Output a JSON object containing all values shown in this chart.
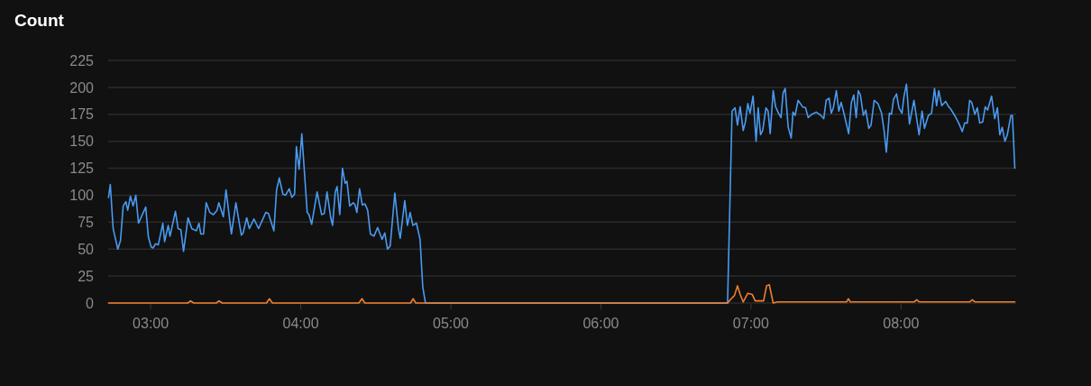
{
  "chart_data": {
    "type": "line",
    "title": "Count",
    "xlim": [
      2.72,
      8.77
    ],
    "xticks": [
      {
        "value": 3,
        "label": "03:00"
      },
      {
        "value": 4,
        "label": "04:00"
      },
      {
        "value": 5,
        "label": "05:00"
      },
      {
        "value": 6,
        "label": "06:00"
      },
      {
        "value": 7,
        "label": "07:00"
      },
      {
        "value": 8,
        "label": "08:00"
      }
    ],
    "ylim": [
      0,
      225
    ],
    "yticks": [
      0,
      25,
      50,
      75,
      100,
      125,
      150,
      175,
      200,
      225
    ],
    "grid": "y",
    "marker": "none",
    "line_style": "solid",
    "series": [
      {
        "color": "#4a9af0",
        "x": [
          2.722,
          2.734,
          2.753,
          2.784,
          2.802,
          2.82,
          2.838,
          2.85,
          2.868,
          2.886,
          2.904,
          2.922,
          2.97,
          2.988,
          3.006,
          3.018,
          3.036,
          3.054,
          3.084,
          3.096,
          3.12,
          3.132,
          3.168,
          3.186,
          3.204,
          3.222,
          3.252,
          3.277,
          3.307,
          3.325,
          3.337,
          3.355,
          3.373,
          3.397,
          3.421,
          3.445,
          3.457,
          3.487,
          3.505,
          3.541,
          3.571,
          3.607,
          3.619,
          3.643,
          3.661,
          3.691,
          3.722,
          3.77,
          3.788,
          3.824,
          3.842,
          3.86,
          3.884,
          3.902,
          3.926,
          3.944,
          3.962,
          3.974,
          3.992,
          4.01,
          4.046,
          4.058,
          4.076,
          4.112,
          4.142,
          4.16,
          4.178,
          4.203,
          4.215,
          4.233,
          4.245,
          4.263,
          4.281,
          4.299,
          4.311,
          4.329,
          4.353,
          4.365,
          4.377,
          4.395,
          4.413,
          4.431,
          4.449,
          4.467,
          4.491,
          4.515,
          4.545,
          4.563,
          4.581,
          4.599,
          4.63,
          4.654,
          4.666,
          4.696,
          4.714,
          4.732,
          4.75,
          4.774,
          4.798,
          4.816,
          4.834,
          6.847,
          6.877,
          6.897,
          6.913,
          6.931,
          6.951,
          6.966,
          6.982,
          6.997,
          7.017,
          7.037,
          7.051,
          7.067,
          7.081,
          7.103,
          7.117,
          7.131,
          7.151,
          7.167,
          7.187,
          7.203,
          7.217,
          7.231,
          7.251,
          7.271,
          7.283,
          7.297,
          7.317,
          7.347,
          7.367,
          7.384,
          7.408,
          7.438,
          7.468,
          7.488,
          7.504,
          7.524,
          7.538,
          7.552,
          7.572,
          7.588,
          7.604,
          7.624,
          7.654,
          7.672,
          7.688,
          7.704,
          7.718,
          7.732,
          7.752,
          7.768,
          7.788,
          7.803,
          7.824,
          7.849,
          7.873,
          7.889,
          7.905,
          7.925,
          7.939,
          7.953,
          7.973,
          7.989,
          8.009,
          8.023,
          8.039,
          8.059,
          8.089,
          8.123,
          8.143,
          8.159,
          8.185,
          8.206,
          8.226,
          8.24,
          8.254,
          8.274,
          8.3,
          8.32,
          8.334,
          8.36,
          8.387,
          8.411,
          8.427,
          8.445,
          8.46,
          8.474,
          8.495,
          8.511,
          8.527,
          8.547,
          8.564,
          8.58,
          8.606,
          8.627,
          8.645,
          8.661,
          8.677,
          8.695,
          8.711,
          8.735,
          8.745,
          8.761
        ],
        "values": [
          98,
          110,
          69,
          50,
          58,
          90,
          94,
          86,
          99,
          90,
          100,
          74,
          89,
          61,
          52,
          51,
          55,
          54,
          74,
          57,
          72,
          62,
          85,
          69,
          68,
          48,
          79,
          69,
          67,
          74,
          64,
          64,
          93,
          84,
          82,
          86,
          93,
          80,
          105,
          64,
          93,
          63,
          65,
          79,
          69,
          78,
          69,
          84,
          83,
          67,
          105,
          116,
          101,
          100,
          106,
          98,
          101,
          145,
          124,
          157,
          84,
          82,
          73,
          103,
          82,
          83,
          103,
          79,
          72,
          103,
          108,
          82,
          125,
          111,
          113,
          90,
          93,
          91,
          84,
          106,
          91,
          92,
          86,
          64,
          62,
          70,
          59,
          65,
          50,
          53,
          102,
          69,
          60,
          95,
          72,
          84,
          72,
          74,
          59,
          15,
          0,
          0,
          178,
          181,
          165,
          182,
          160,
          168,
          185,
          176,
          192,
          150,
          181,
          156,
          160,
          181,
          178,
          157,
          197,
          182,
          176,
          172,
          195,
          199,
          163,
          153,
          177,
          174,
          188,
          182,
          181,
          172,
          175,
          177,
          174,
          171,
          188,
          190,
          176,
          181,
          197,
          178,
          186,
          175,
          157,
          186,
          193,
          172,
          197,
          193,
          174,
          179,
          162,
          165,
          188,
          185,
          176,
          161,
          140,
          176,
          175,
          189,
          194,
          181,
          176,
          192,
          203,
          166,
          188,
          156,
          178,
          162,
          174,
          176,
          199,
          183,
          197,
          183,
          187,
          182,
          180,
          174,
          167,
          159,
          167,
          167,
          188,
          186,
          175,
          181,
          167,
          168,
          182,
          179,
          192,
          171,
          181,
          156,
          163,
          150,
          156,
          174,
          174,
          125
        ]
      },
      {
        "color": "#f2802e",
        "x": [
          2.722,
          3.25,
          3.269,
          3.29,
          3.44,
          3.459,
          3.48,
          3.775,
          3.794,
          3.815,
          4.39,
          4.411,
          4.43,
          4.735,
          4.752,
          4.77,
          4.834,
          6.847,
          6.871,
          6.893,
          6.913,
          6.931,
          6.951,
          6.982,
          7.011,
          7.031,
          7.087,
          7.107,
          7.125,
          7.151,
          7.18,
          7.64,
          7.652,
          7.665,
          8.09,
          8.107,
          8.125,
          8.46,
          8.478,
          8.495,
          8.761
        ],
        "values": [
          0,
          0,
          2,
          0,
          0,
          2,
          0,
          0,
          4,
          0,
          0,
          4,
          0,
          0,
          4,
          0,
          0,
          0,
          4,
          7,
          16,
          8,
          1,
          9,
          8,
          2,
          2,
          16,
          17,
          0,
          1,
          1,
          4,
          1,
          1,
          3,
          1,
          1,
          3,
          1,
          1
        ]
      }
    ]
  }
}
